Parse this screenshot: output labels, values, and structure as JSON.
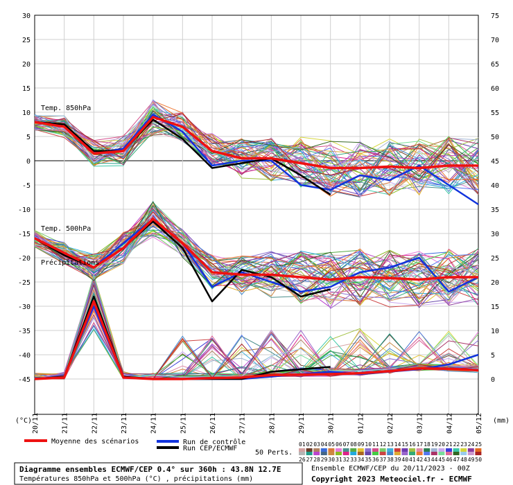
{
  "chart_data": {
    "type": "line",
    "left_axis": {
      "unit": "(°C)",
      "ticks": [
        30,
        25,
        20,
        15,
        10,
        5,
        0,
        -5,
        -10,
        -15,
        -20,
        -25,
        -30,
        -35,
        -40,
        -45
      ],
      "ylim": [
        -45,
        30
      ]
    },
    "right_axis": {
      "unit": "(mm)",
      "ticks": [
        75,
        70,
        65,
        60,
        55,
        50,
        45,
        40,
        35,
        30,
        25,
        20,
        15,
        10,
        5,
        0
      ],
      "ylim": [
        0,
        75
      ]
    },
    "x_ticks": [
      "20/11",
      "21/11",
      "22/11",
      "23/11",
      "24/11",
      "25/11",
      "26/11",
      "27/11",
      "28/11",
      "29/11",
      "30/11",
      "01/12",
      "02/12",
      "03/12",
      "04/12",
      "05/12"
    ],
    "panel_labels": {
      "t850": "Temp. 850hPa",
      "t500": "Temp. 500hPa",
      "precip": "Précipitations"
    },
    "t850": {
      "mean": [
        8,
        7,
        1.5,
        2,
        9,
        7,
        2,
        0.5,
        0.5,
        -0.5,
        -1.5,
        -1.5,
        -1.2,
        -1.5,
        -1,
        -1
      ],
      "control": [
        8,
        7,
        1.5,
        2.5,
        9.5,
        6,
        -1,
        0,
        0,
        -5,
        -6,
        -3,
        -4,
        -1,
        -5,
        -9
      ],
      "run": [
        8,
        7.5,
        2,
        2,
        8.5,
        4.5,
        -1.5,
        -0.5,
        0.5,
        -3,
        -7
      ]
    },
    "t500": {
      "mean": [
        -16,
        -19,
        -22,
        -18,
        -12,
        -17,
        -23,
        -23.5,
        -23.5,
        -24,
        -24.5,
        -24,
        -24.2,
        -24.5,
        -24,
        -24
      ],
      "control": [
        -16,
        -19,
        -22,
        -17,
        -12,
        -17,
        -26,
        -23,
        -25,
        -27,
        -26,
        -23,
        -22,
        -20,
        -27,
        -24
      ],
      "run": [
        -16,
        -19.5,
        -22,
        -18,
        -12.5,
        -18,
        -29,
        -22.5,
        -24,
        -28,
        -26.5
      ]
    },
    "precip": {
      "mean": [
        0,
        0.3,
        16,
        0.3,
        0,
        0,
        0.2,
        0.3,
        0.8,
        0.9,
        1,
        1.2,
        1.6,
        2.2,
        2.1,
        1.8
      ],
      "control": [
        0,
        0.5,
        15,
        0.3,
        0,
        0,
        0,
        0,
        0.5,
        1,
        1.5,
        1,
        1.5,
        2,
        3,
        5
      ],
      "run": [
        0,
        0.5,
        17,
        0.5,
        0,
        0,
        0,
        0,
        1.5,
        2,
        2.5
      ]
    },
    "member_count": 50,
    "member_colors": [
      "#d4a0a0",
      "#6b3b2a",
      "#b08060",
      "#3a6bd9",
      "#d97a3a",
      "#e87ad9",
      "#4b8f8c",
      "#55aa44",
      "#e4c233",
      "#8a6fd1",
      "#d44e8a",
      "#7acb6a",
      "#3fb0d9",
      "#ce3b3b",
      "#6d3ab0",
      "#a0c040",
      "#e08aa8",
      "#2a7d4f",
      "#9fb3d4",
      "#c9a8ee",
      "#3a3ad9",
      "#39c8a6",
      "#d6d63a",
      "#8a3a9d",
      "#e36a1f",
      "#b5b5b5",
      "#1f9e89",
      "#bb44cc",
      "#446688",
      "#cc8844",
      "#88bb22",
      "#dd2288",
      "#22aadd",
      "#aa6622",
      "#6644aa",
      "#44cc44",
      "#cc4444",
      "#4488cc",
      "#ddaa33",
      "#9966cc",
      "#33aa77",
      "#ee7733",
      "#5577ee",
      "#aa3366",
      "#77dd99",
      "#dd6699",
      "#336622",
      "#99ccee",
      "#cc99cc",
      "#aa2222"
    ],
    "legend": {
      "mean": "Moyenne des scénarios",
      "control": "Run de contrôle",
      "run": "Run CEP/ECMWF",
      "perts": "50 Perts.",
      "numbers_row1": [
        "01",
        "02",
        "03",
        "04",
        "05",
        "06",
        "07",
        "08",
        "09",
        "10",
        "11",
        "12",
        "13",
        "14",
        "15",
        "16",
        "17",
        "18",
        "19",
        "20",
        "21",
        "22",
        "23",
        "24",
        "25"
      ],
      "numbers_row2": [
        "26",
        "27",
        "28",
        "29",
        "30",
        "31",
        "32",
        "33",
        "34",
        "35",
        "36",
        "37",
        "38",
        "39",
        "40",
        "41",
        "42",
        "43",
        "44",
        "45",
        "46",
        "47",
        "48",
        "49",
        "50"
      ]
    },
    "colors": {
      "mean": "#ee1111",
      "control": "#1133dd",
      "run": "#000000",
      "zero_line": "#808080"
    }
  },
  "footer": {
    "title": "Diagramme ensembles ECMWF/CEP 0.4° sur 360h : 43.8N 12.7E",
    "subtitle": "Températures 850hPa et 500hPa (°C) , précipitations (mm)",
    "run_info": "Ensemble ECMWF/CEP du 20/11/2023 - 00Z",
    "copyright": "Copyright 2023 Meteociel.fr - ECMWF"
  }
}
